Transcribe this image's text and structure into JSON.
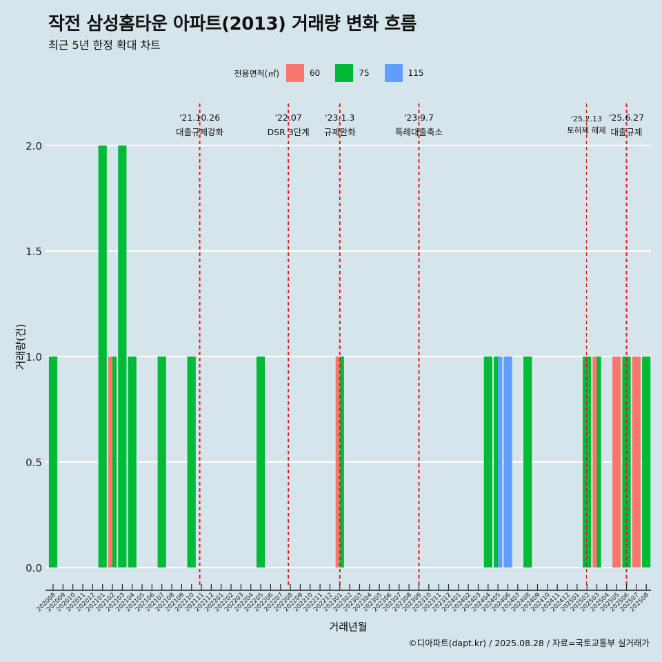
{
  "page": {
    "title": "작전 삼성홈타운 아파트(2013) 거래량 변화 흐름",
    "subtitle": "최근 5년 한정 확대 차트",
    "caption": "©디아파트(dapt.kr) / 2025.08.28 / 자료=국토교통부 실거래가"
  },
  "colors": {
    "background": "#d6e4ec",
    "s60": "#f8766d",
    "s75": "#00ba38",
    "s115": "#619cff",
    "event_line": "#e31a1c"
  },
  "chart_data": {
    "type": "bar",
    "title": "작전 삼성홈타운 아파트(2013) 거래량 변화 흐름",
    "xlabel": "거래년월",
    "ylabel": "거래량(건)",
    "ylim": [
      -0.08,
      2.2
    ],
    "yticks": [
      "0.0",
      "0.5",
      "1.0",
      "1.5",
      "2.0"
    ],
    "legend_title": "전용면적(㎡)",
    "categories": [
      "202008",
      "202009",
      "202010",
      "202011",
      "202012",
      "202101",
      "202102",
      "202103",
      "202104",
      "202105",
      "202106",
      "202107",
      "202108",
      "202109",
      "202110",
      "202111",
      "202112",
      "202201",
      "202202",
      "202203",
      "202204",
      "202205",
      "202206",
      "202207",
      "202208",
      "202209",
      "202210",
      "202211",
      "202212",
      "202301",
      "202302",
      "202303",
      "202304",
      "202305",
      "202306",
      "202307",
      "202308",
      "202309",
      "202310",
      "202311",
      "202312",
      "202401",
      "202402",
      "202403",
      "202404",
      "202405",
      "202406",
      "202407",
      "202408",
      "202409",
      "202410",
      "202411",
      "202412",
      "202501",
      "202502",
      "202503",
      "202504",
      "202505",
      "202506",
      "202507",
      "202508"
    ],
    "series": [
      {
        "name": "60",
        "color": "#f8766d",
        "values": [
          0,
          0,
          0,
          0,
          0,
          0,
          1,
          0,
          0,
          0,
          0,
          0,
          0,
          0,
          0,
          0,
          0,
          0,
          0,
          0,
          0,
          0,
          0,
          0,
          0,
          0,
          0,
          0,
          0,
          1,
          0,
          0,
          0,
          0,
          0,
          0,
          0,
          0,
          0,
          0,
          0,
          0,
          0,
          0,
          0,
          0,
          0,
          0,
          0,
          0,
          0,
          0,
          0,
          0,
          0,
          1,
          0,
          1,
          0,
          1,
          0
        ]
      },
      {
        "name": "75",
        "color": "#00ba38",
        "values": [
          1,
          0,
          0,
          0,
          0,
          2,
          1,
          2,
          1,
          0,
          0,
          1,
          0,
          0,
          1,
          0,
          0,
          0,
          0,
          0,
          0,
          1,
          0,
          0,
          0,
          0,
          0,
          0,
          0,
          1,
          0,
          0,
          0,
          0,
          0,
          0,
          0,
          0,
          0,
          0,
          0,
          0,
          0,
          0,
          1,
          1,
          0,
          0,
          1,
          0,
          0,
          0,
          0,
          0,
          1,
          1,
          0,
          0,
          1,
          0,
          1
        ]
      },
      {
        "name": "115",
        "color": "#619cff",
        "values": [
          0,
          0,
          0,
          0,
          0,
          0,
          0,
          0,
          0,
          0,
          0,
          0,
          0,
          0,
          0,
          0,
          0,
          0,
          0,
          0,
          0,
          0,
          0,
          0,
          0,
          0,
          0,
          0,
          0,
          0,
          0,
          0,
          0,
          0,
          0,
          0,
          0,
          0,
          0,
          0,
          0,
          0,
          0,
          0,
          0,
          1,
          1,
          0,
          0,
          0,
          0,
          0,
          0,
          0,
          0,
          0,
          0,
          0,
          0,
          0,
          0
        ]
      }
    ],
    "events": [
      {
        "date": "'21.10.26",
        "label": "대출규제강화",
        "month_index": 14.83
      },
      {
        "date": "'22.07",
        "label": "DSR 3단계",
        "month_index": 23.8
      },
      {
        "date": "'23.1.3",
        "label": "규제완화",
        "month_index": 29.0
      },
      {
        "date": "'23.9.7",
        "label": "특례대출축소",
        "month_index": 37.0
      },
      {
        "date": "'25.2.13",
        "label": "토허제 해제",
        "month_index": 53.95
      },
      {
        "date": "'25.6.27",
        "label": "대출규제",
        "month_index": 58.0
      }
    ]
  }
}
